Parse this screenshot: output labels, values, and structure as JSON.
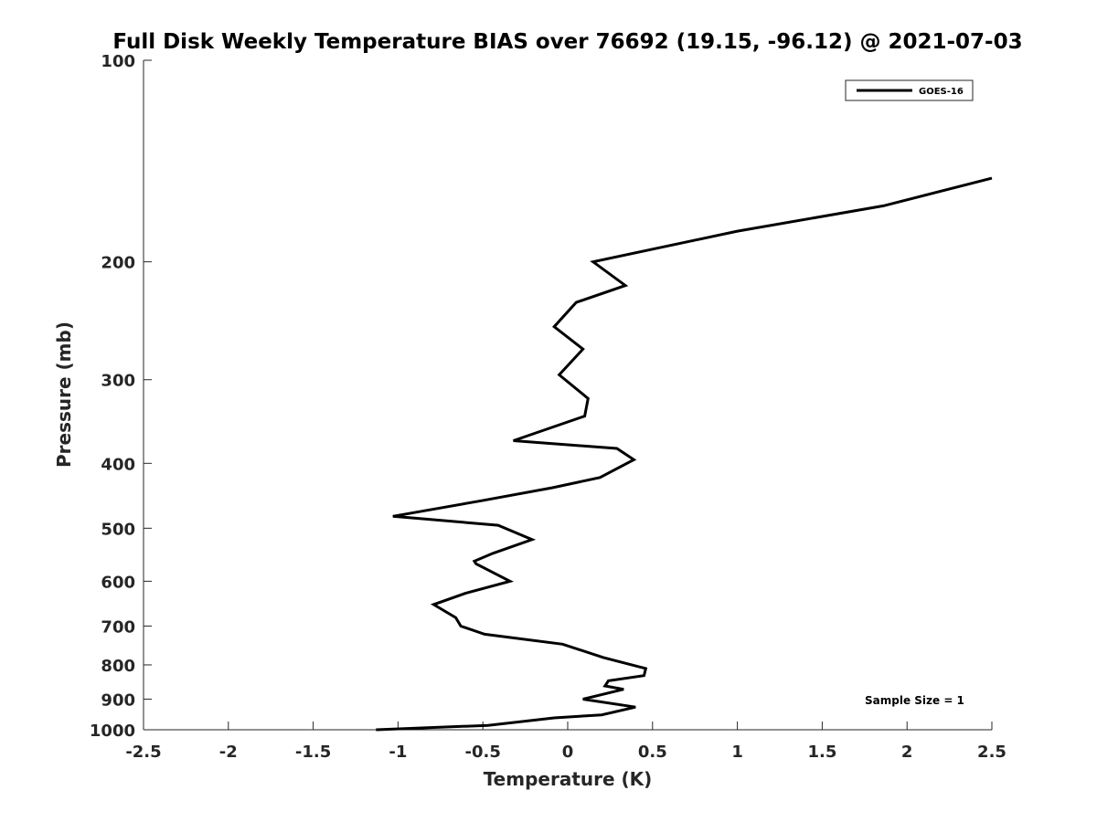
{
  "chart_data": {
    "type": "line",
    "title": "Full Disk Weekly Temperature BIAS over 76692 (19.15, -96.12) @ 2021-07-03",
    "xlabel": "Temperature (K)",
    "ylabel": "Pressure (mb)",
    "xlim": [
      -2.5,
      2.5
    ],
    "ylim": [
      1000,
      100
    ],
    "yscale": "log",
    "grid": false,
    "legend_position": "top-right",
    "x_ticks": [
      "-2.5",
      "-2",
      "-1.5",
      "-1",
      "-0.5",
      "0",
      "0.5",
      "1",
      "1.5",
      "2",
      "2.5"
    ],
    "y_ticks": [
      "100",
      "200",
      "300",
      "400",
      "500",
      "600",
      "700",
      "800",
      "900",
      "1000"
    ],
    "annotation": "Sample Size = 1",
    "series": [
      {
        "name": "GOES-16",
        "color": "#000000",
        "x": [
          2.5,
          1.86,
          1.0,
          0.15,
          0.34,
          0.05,
          -0.08,
          0.09,
          -0.05,
          0.12,
          0.1,
          -0.32,
          0.29,
          0.39,
          0.19,
          -0.09,
          -0.51,
          -1.03,
          -0.41,
          -0.21,
          -0.44,
          -0.55,
          -0.54,
          -0.34,
          -0.6,
          -0.79,
          -0.66,
          -0.63,
          -0.49,
          -0.03,
          0.21,
          0.46,
          0.45,
          0.24,
          0.22,
          0.33,
          0.09,
          0.4,
          0.2,
          -0.08,
          -0.47,
          -1.13
        ],
        "y": [
          150,
          165,
          180,
          200,
          217,
          230,
          250,
          270,
          295,
          320,
          340,
          370,
          380,
          395,
          420,
          435,
          455,
          480,
          495,
          520,
          545,
          560,
          565,
          600,
          625,
          650,
          680,
          700,
          720,
          745,
          780,
          810,
          830,
          845,
          860,
          870,
          900,
          925,
          950,
          960,
          985,
          1000
        ]
      }
    ]
  }
}
